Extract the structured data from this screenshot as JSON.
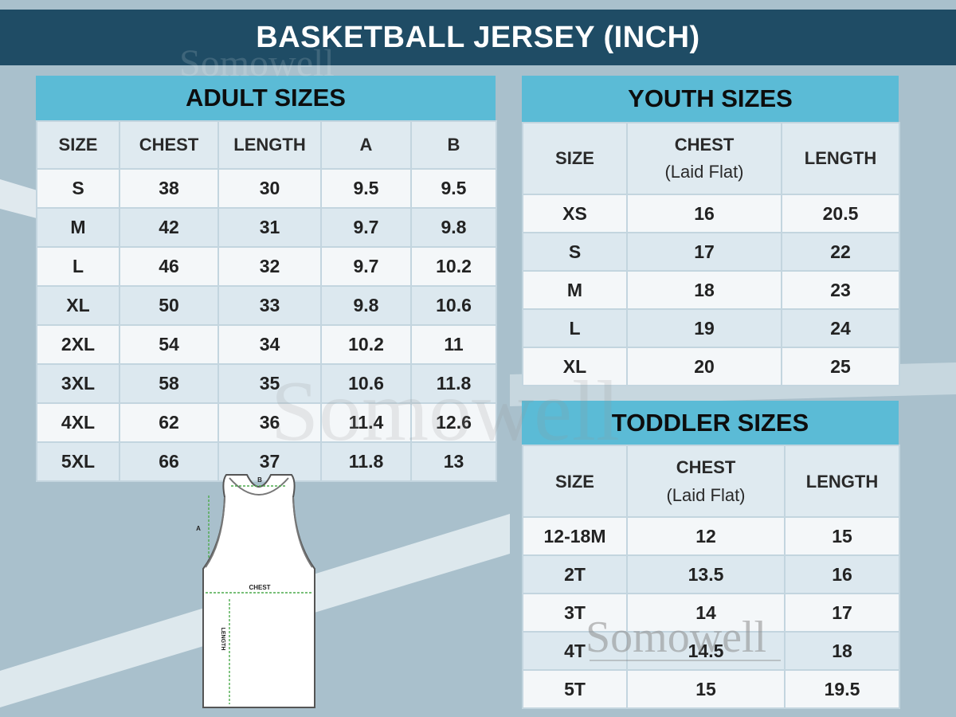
{
  "title": "BASKETBALL JERSEY (INCH)",
  "watermark": "Somowell",
  "adult": {
    "title": "ADULT SIZES",
    "headers": [
      "SIZE",
      "CHEST",
      "LENGTH",
      "A",
      "B"
    ],
    "rows": [
      [
        "S",
        "38",
        "30",
        "9.5",
        "9.5"
      ],
      [
        "M",
        "42",
        "31",
        "9.7",
        "9.8"
      ],
      [
        "L",
        "46",
        "32",
        "9.7",
        "10.2"
      ],
      [
        "XL",
        "50",
        "33",
        "9.8",
        "10.6"
      ],
      [
        "2XL",
        "54",
        "34",
        "10.2",
        "11"
      ],
      [
        "3XL",
        "58",
        "35",
        "10.6",
        "11.8"
      ],
      [
        "4XL",
        "62",
        "36",
        "11.4",
        "12.6"
      ],
      [
        "5XL",
        "66",
        "37",
        "11.8",
        "13"
      ]
    ]
  },
  "youth": {
    "title": "YOUTH SIZES",
    "headers": [
      "SIZE",
      "CHEST",
      "(Laid Flat)",
      "LENGTH"
    ],
    "rows": [
      [
        "XS",
        "16",
        "20.5"
      ],
      [
        "S",
        "17",
        "22"
      ],
      [
        "M",
        "18",
        "23"
      ],
      [
        "L",
        "19",
        "24"
      ],
      [
        "XL",
        "20",
        "25"
      ]
    ]
  },
  "toddler": {
    "title": "TODDLER SIZES",
    "headers": [
      "SIZE",
      "CHEST",
      "(Laid Flat)",
      "LENGTH"
    ],
    "rows": [
      [
        "12-18M",
        "12",
        "15"
      ],
      [
        "2T",
        "13.5",
        "16"
      ],
      [
        "3T",
        "14",
        "17"
      ],
      [
        "4T",
        "14.5",
        "18"
      ],
      [
        "5T",
        "15",
        "19.5"
      ]
    ]
  },
  "diagram": {
    "a": "A",
    "b": "B",
    "chest": "CHEST",
    "length": "LENGTH"
  },
  "colors": {
    "banner": "#1f4c65",
    "header": "#5bbbd6",
    "background": "#a9c0cc"
  }
}
